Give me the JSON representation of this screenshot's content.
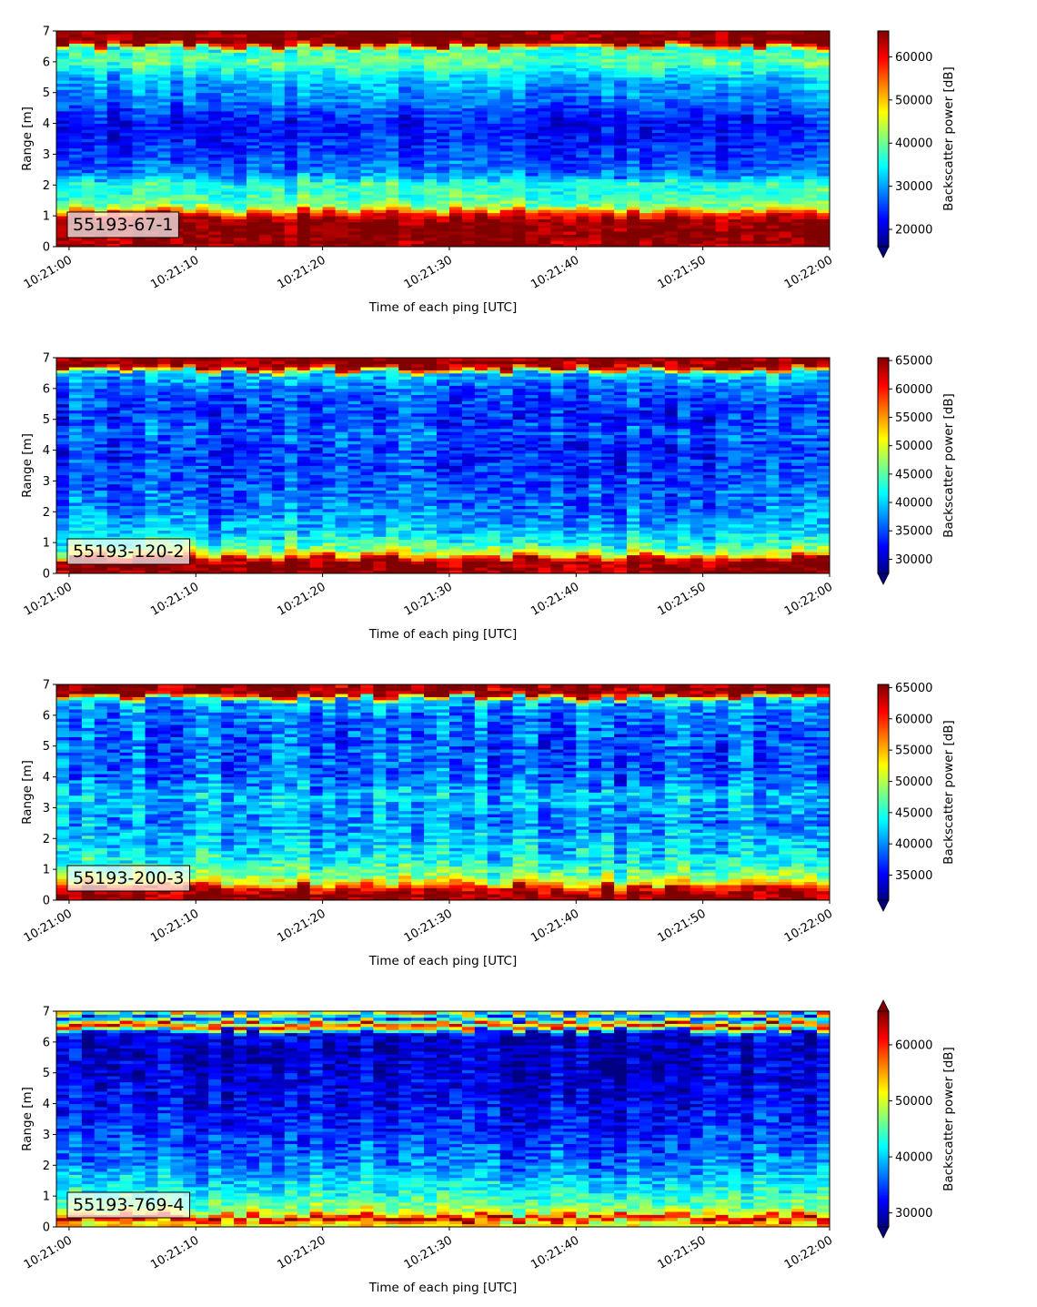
{
  "chart_data": [
    {
      "type": "heatmap",
      "label": "55193-67-1",
      "xlabel": "Time of each ping [UTC]",
      "ylabel": "Range [m]",
      "colorbar_label": "Backscatter power [dB]",
      "x_range": [
        "10:21:00",
        "10:22:00"
      ],
      "xlim": [
        "10:20:59",
        "10:22:00"
      ],
      "ylim": [
        0,
        7
      ],
      "clim": [
        16000,
        66000
      ],
      "colorbar_extend": "min",
      "x_ticks": [
        "10:21:00",
        "10:21:10",
        "10:21:20",
        "10:21:30",
        "10:21:40",
        "10:21:50",
        "10:22:00"
      ],
      "y_ticks": [
        0,
        1,
        2,
        3,
        4,
        5,
        6,
        7
      ],
      "colorbar_ticks": [
        20000,
        30000,
        40000,
        50000,
        60000
      ],
      "profile": [
        {
          "range": 0.2,
          "value": 65000
        },
        {
          "range": 0.5,
          "value": 66000
        },
        {
          "range": 0.85,
          "value": 65500
        },
        {
          "range": 1.1,
          "value": 57000
        },
        {
          "range": 1.3,
          "value": 41000
        },
        {
          "range": 1.8,
          "value": 36000
        },
        {
          "range": 2.0,
          "value": 38500
        },
        {
          "range": 2.3,
          "value": 29000
        },
        {
          "range": 3.0,
          "value": 25000
        },
        {
          "range": 4.0,
          "value": 22500
        },
        {
          "range": 4.7,
          "value": 28000
        },
        {
          "range": 5.4,
          "value": 31000
        },
        {
          "range": 6.0,
          "value": 40000
        },
        {
          "range": 6.4,
          "value": 36000
        },
        {
          "range": 6.6,
          "value": 66000
        },
        {
          "range": 7.0,
          "value": 66000
        }
      ],
      "colormap": "jet"
    },
    {
      "type": "heatmap",
      "label": "55193-120-2",
      "xlabel": "Time of each ping [UTC]",
      "ylabel": "Range [m]",
      "colorbar_label": "Backscatter power [dB]",
      "x_range": [
        "10:21:00",
        "10:22:00"
      ],
      "xlim": [
        "10:20:59",
        "10:22:00"
      ],
      "ylim": [
        0,
        7
      ],
      "clim": [
        27500,
        65500
      ],
      "colorbar_extend": "min",
      "x_ticks": [
        "10:21:00",
        "10:21:10",
        "10:21:20",
        "10:21:30",
        "10:21:40",
        "10:21:50",
        "10:22:00"
      ],
      "y_ticks": [
        0,
        1,
        2,
        3,
        4,
        5,
        6,
        7
      ],
      "colorbar_ticks": [
        30000,
        35000,
        40000,
        45000,
        50000,
        55000,
        60000,
        65000
      ],
      "profile": [
        {
          "range": 0.2,
          "value": 65000
        },
        {
          "range": 0.45,
          "value": 65000
        },
        {
          "range": 0.6,
          "value": 52000
        },
        {
          "range": 0.9,
          "value": 44000
        },
        {
          "range": 1.3,
          "value": 40000
        },
        {
          "range": 2.0,
          "value": 37000
        },
        {
          "range": 3.0,
          "value": 35000
        },
        {
          "range": 4.0,
          "value": 34000
        },
        {
          "range": 4.6,
          "value": 36000
        },
        {
          "range": 5.0,
          "value": 34000
        },
        {
          "range": 6.0,
          "value": 36000
        },
        {
          "range": 6.5,
          "value": 40000
        },
        {
          "range": 6.7,
          "value": 65000
        },
        {
          "range": 7.0,
          "value": 65000
        }
      ],
      "colormap": "jet"
    },
    {
      "type": "heatmap",
      "label": "55193-200-3",
      "xlabel": "Time of each ping [UTC]",
      "ylabel": "Range [m]",
      "colorbar_label": "Backscatter power [dB]",
      "x_range": [
        "10:21:00",
        "10:22:00"
      ],
      "xlim": [
        "10:20:59",
        "10:22:00"
      ],
      "ylim": [
        0,
        7
      ],
      "clim": [
        31000,
        65500
      ],
      "colorbar_extend": "min",
      "x_ticks": [
        "10:21:00",
        "10:21:10",
        "10:21:20",
        "10:21:30",
        "10:21:40",
        "10:21:50",
        "10:22:00"
      ],
      "y_ticks": [
        0,
        1,
        2,
        3,
        4,
        5,
        6,
        7
      ],
      "colorbar_ticks": [
        35000,
        40000,
        45000,
        50000,
        55000,
        60000,
        65000
      ],
      "profile": [
        {
          "range": 0.2,
          "value": 65000
        },
        {
          "range": 0.4,
          "value": 62000
        },
        {
          "range": 0.6,
          "value": 52000
        },
        {
          "range": 1.0,
          "value": 46000
        },
        {
          "range": 1.5,
          "value": 43000
        },
        {
          "range": 2.5,
          "value": 40000
        },
        {
          "range": 3.4,
          "value": 42000
        },
        {
          "range": 4.0,
          "value": 38500
        },
        {
          "range": 5.0,
          "value": 38000
        },
        {
          "range": 6.0,
          "value": 39000
        },
        {
          "range": 6.5,
          "value": 42000
        },
        {
          "range": 6.7,
          "value": 65000
        },
        {
          "range": 7.0,
          "value": 65000
        }
      ],
      "colormap": "jet"
    },
    {
      "type": "heatmap",
      "label": "55193-769-4",
      "xlabel": "Time of each ping [UTC]",
      "ylabel": "Range [m]",
      "colorbar_label": "Backscatter power [dB]",
      "x_range": [
        "10:21:00",
        "10:22:00"
      ],
      "xlim": [
        "10:20:59",
        "10:22:00"
      ],
      "ylim": [
        0,
        7
      ],
      "clim": [
        27500,
        66000
      ],
      "colorbar_extend": "both",
      "x_ticks": [
        "10:21:00",
        "10:21:10",
        "10:21:20",
        "10:21:30",
        "10:21:40",
        "10:21:50",
        "10:22:00"
      ],
      "y_ticks": [
        0,
        1,
        2,
        3,
        4,
        5,
        6,
        7
      ],
      "colorbar_ticks": [
        30000,
        40000,
        50000,
        60000
      ],
      "profile": [
        {
          "range": 0.15,
          "value": 52000
        },
        {
          "range": 0.3,
          "value": 66000
        },
        {
          "range": 0.45,
          "value": 50000
        },
        {
          "range": 0.7,
          "value": 46000
        },
        {
          "range": 1.2,
          "value": 42000
        },
        {
          "range": 2.0,
          "value": 37000
        },
        {
          "range": 3.0,
          "value": 34000
        },
        {
          "range": 4.0,
          "value": 32000
        },
        {
          "range": 5.0,
          "value": 30500
        },
        {
          "range": 6.0,
          "value": 30000
        },
        {
          "range": 6.3,
          "value": 31000
        },
        {
          "range": 6.55,
          "value": 62000
        },
        {
          "range": 6.8,
          "value": 32000
        },
        {
          "range": 7.0,
          "value": 55000
        }
      ],
      "colormap": "jet"
    }
  ]
}
